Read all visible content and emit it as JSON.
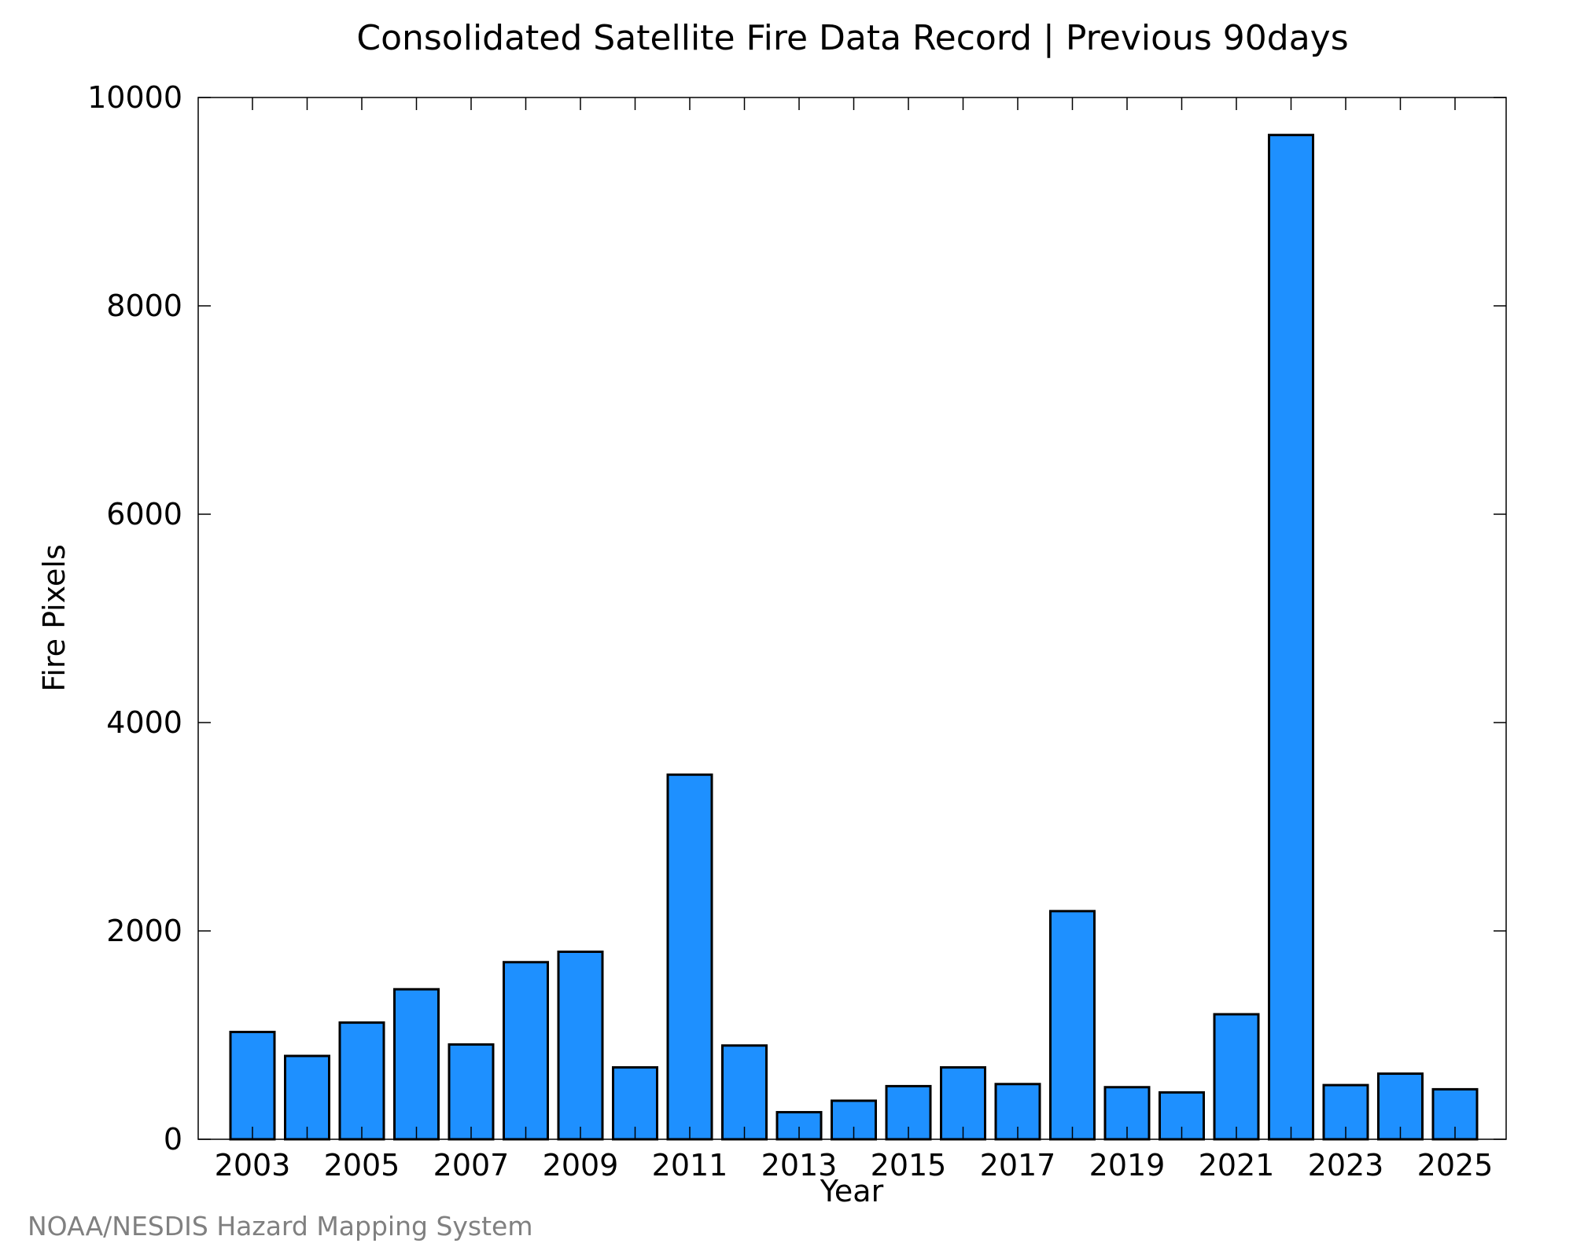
{
  "title": "Consolidated Satellite Fire Data Record | Previous 90days",
  "footer": "NOAA/NESDIS Hazard Mapping System",
  "colors": {
    "bar_fill": "#1e90ff",
    "bar_stroke": "#000000",
    "axis": "#000000",
    "footer": "#808080"
  },
  "chart_data": {
    "type": "bar",
    "title": "Consolidated Satellite Fire Data Record | Previous 90days",
    "xlabel": "Year",
    "ylabel": "Fire Pixels",
    "categories": [
      "2003",
      "2004",
      "2005",
      "2006",
      "2007",
      "2008",
      "2009",
      "2010",
      "2011",
      "2012",
      "2013",
      "2014",
      "2015",
      "2016",
      "2017",
      "2018",
      "2019",
      "2020",
      "2021",
      "2022",
      "2023",
      "2024",
      "2025"
    ],
    "values": [
      1030,
      800,
      1120,
      1440,
      910,
      1700,
      1800,
      690,
      3500,
      900,
      260,
      370,
      510,
      690,
      530,
      2190,
      500,
      450,
      1200,
      9640,
      520,
      630,
      480
    ],
    "x_tick_labels": [
      "2003",
      "2005",
      "2007",
      "2009",
      "2011",
      "2013",
      "2015",
      "2017",
      "2019",
      "2021",
      "2023",
      "2025"
    ],
    "y_tick_labels": [
      "0",
      "2000",
      "4000",
      "6000",
      "8000",
      "10000"
    ],
    "ylim": [
      0,
      10000
    ],
    "grid": false,
    "legend": "none"
  }
}
